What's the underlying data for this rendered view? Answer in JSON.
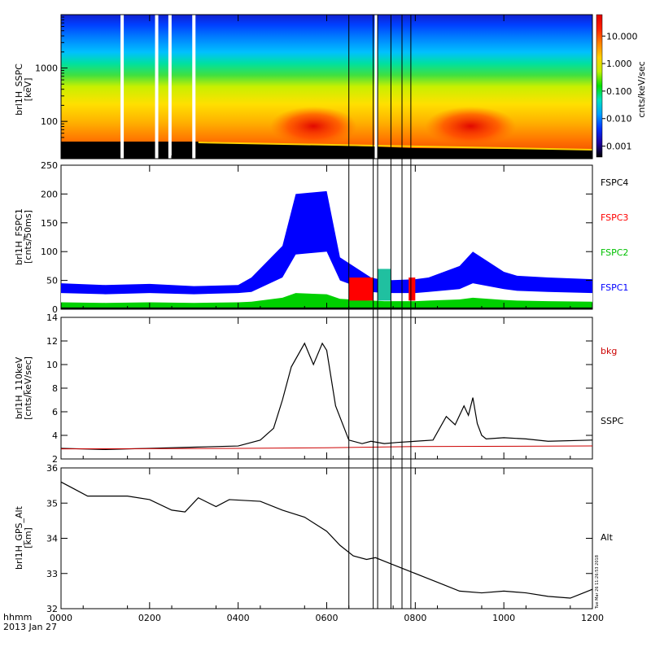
{
  "time_axis": {
    "label_line1": "hhmm",
    "label_line2": "2013 Jan 27",
    "ticks": [
      "0000",
      "0200",
      "0400",
      "0600",
      "0800",
      "1000",
      "1200"
    ],
    "range_hours": [
      0,
      12
    ]
  },
  "markers": [
    {
      "name": "event-line-1",
      "time_hhmm": "0650"
    },
    {
      "name": "event-line-2",
      "time_hhmm": "0705"
    },
    {
      "name": "event-line-3",
      "time_hhmm": "0715"
    },
    {
      "name": "event-line-4",
      "time_hhmm": "0745"
    },
    {
      "name": "event-line-5",
      "time_hhmm": "0770"
    },
    {
      "name": "event-line-6",
      "time_hhmm": "0790"
    }
  ],
  "timestamp": "Tue Mar 26 11:26:53 2018",
  "chart_data": [
    {
      "type": "heatmap",
      "panel": "spectrogram",
      "ylabel": "brl1H_SSPC",
      "yunit": "[keV]",
      "scale": "log",
      "yticks": [
        "100",
        "1000"
      ],
      "colorbar": {
        "label": "cnts/keV/sec",
        "ticks": [
          "0.001",
          "0.010",
          "0.100",
          "1.000",
          "10.000"
        ],
        "range": [
          0.0004,
          60
        ],
        "colors": [
          "#000000",
          "#1e00a0",
          "#0030ff",
          "#00a0ff",
          "#00e0c0",
          "#00e000",
          "#c0f000",
          "#ffd000",
          "#ff8000",
          "#ff2000",
          "#e00000"
        ]
      },
      "data_gaps_hhmm": [
        "0138",
        "0216",
        "0246",
        "0300",
        "0712"
      ],
      "enhancements_hhmm": [
        [
          "0500",
          "0640"
        ],
        [
          "0850",
          "1000"
        ]
      ]
    },
    {
      "type": "line",
      "panel": "fspc",
      "ylabel": "brl1H_FSPC1",
      "yunit": "[cnts/50ms]",
      "ylim": [
        0,
        250
      ],
      "yticks": [
        0,
        50,
        100,
        150,
        200,
        250
      ],
      "series": [
        {
          "name": "FSPC4",
          "color": "#000000"
        },
        {
          "name": "FSPC3",
          "color": "#ff0000"
        },
        {
          "name": "FSPC2",
          "color": "#00d000"
        },
        {
          "name": "FSPC1",
          "color": "#0000ff"
        }
      ],
      "x_hhmm": [
        "0000",
        "0100",
        "0200",
        "0300",
        "0400",
        "0430",
        "0500",
        "0530",
        "0600",
        "0630",
        "0700",
        "0730",
        "0800",
        "0830",
        "0900",
        "0930",
        "1000",
        "1030",
        "1100",
        "1200"
      ],
      "fspc1_upper": [
        45,
        42,
        44,
        40,
        42,
        55,
        110,
        200,
        205,
        90,
        55,
        50,
        52,
        55,
        75,
        100,
        65,
        58,
        55,
        52
      ],
      "fspc1_lower": [
        28,
        26,
        28,
        26,
        28,
        30,
        55,
        95,
        100,
        50,
        30,
        28,
        28,
        30,
        35,
        45,
        35,
        32,
        30,
        28
      ],
      "fspc2_level": [
        12,
        11,
        12,
        11,
        12,
        13,
        20,
        28,
        26,
        18,
        15,
        14,
        14,
        15,
        17,
        20,
        16,
        15,
        14,
        13
      ],
      "fspc4_level": [
        3,
        3,
        3,
        3,
        3,
        3,
        3,
        3,
        3,
        3,
        3,
        3,
        3,
        3,
        3,
        3,
        3,
        3,
        3,
        3
      ]
    },
    {
      "type": "line",
      "panel": "flux",
      "ylabel": "brl1H_110keV",
      "yunit": "[cnts/keV/sec]",
      "ylim": [
        2,
        14
      ],
      "yticks": [
        2,
        4,
        6,
        8,
        10,
        12,
        14
      ],
      "series": [
        {
          "name": "SSPC",
          "color": "#000000",
          "x_hours": [
            0,
            1,
            2,
            3,
            4,
            4.5,
            4.8,
            5.0,
            5.2,
            5.5,
            5.7,
            5.9,
            6.0,
            6.2,
            6.5,
            6.8,
            7.0,
            7.3,
            7.6,
            8.0,
            8.4,
            8.7,
            8.9,
            9.1,
            9.2,
            9.3,
            9.4,
            9.5,
            9.6,
            10.0,
            10.5,
            11.0,
            12.0
          ],
          "values": [
            2.9,
            2.8,
            2.9,
            3.0,
            3.1,
            3.6,
            4.6,
            7.0,
            9.8,
            11.8,
            10.0,
            11.8,
            11.2,
            6.5,
            3.6,
            3.3,
            3.5,
            3.3,
            3.4,
            3.5,
            3.6,
            5.6,
            4.9,
            6.5,
            5.7,
            7.2,
            5.0,
            4.0,
            3.7,
            3.8,
            3.7,
            3.5,
            3.6
          ]
        },
        {
          "name": "bkg",
          "color": "#cc0000",
          "x_hours": [
            0,
            4,
            6,
            8,
            12
          ],
          "values": [
            2.85,
            2.9,
            2.95,
            3.05,
            3.1
          ]
        }
      ]
    },
    {
      "type": "line",
      "panel": "altitude",
      "ylabel": "brl1H_GPS_Alt",
      "yunit": "[km]",
      "ylim": [
        32,
        36
      ],
      "yticks": [
        32,
        33,
        34,
        35,
        36
      ],
      "series": [
        {
          "name": "Alt",
          "color": "#000000",
          "x_hours": [
            0,
            0.3,
            0.6,
            1.0,
            1.5,
            2.0,
            2.5,
            2.8,
            3.1,
            3.5,
            3.8,
            4.5,
            5.0,
            5.5,
            6.0,
            6.3,
            6.6,
            6.9,
            7.1,
            7.4,
            7.8,
            8.2,
            8.6,
            9.0,
            9.5,
            10.0,
            10.5,
            11.0,
            11.5,
            11.8,
            12.0
          ],
          "values": [
            35.6,
            35.4,
            35.2,
            35.2,
            35.2,
            35.1,
            34.8,
            34.75,
            35.15,
            34.9,
            35.1,
            35.05,
            34.8,
            34.6,
            34.2,
            33.8,
            33.5,
            33.4,
            33.45,
            33.3,
            33.1,
            32.9,
            32.7,
            32.5,
            32.45,
            32.5,
            32.45,
            32.35,
            32.3,
            32.45,
            32.55
          ]
        }
      ]
    }
  ]
}
